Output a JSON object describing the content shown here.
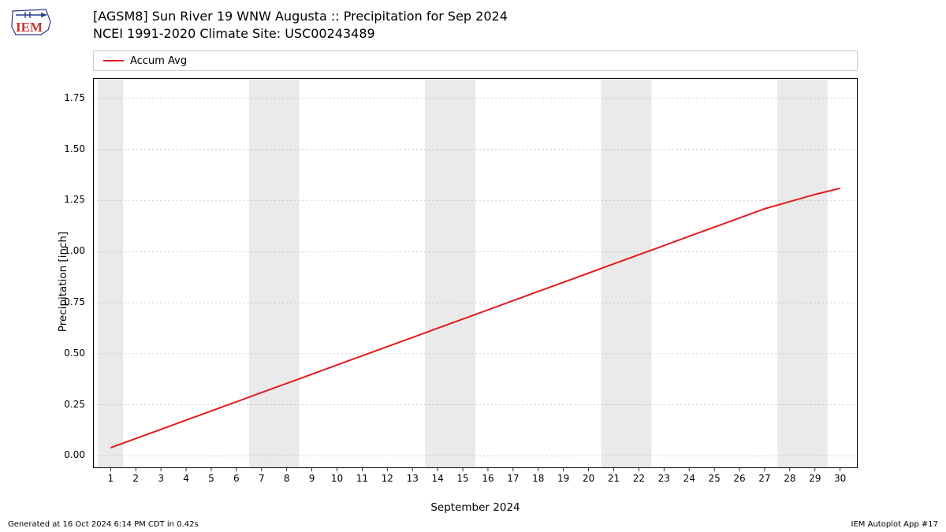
{
  "logo": {
    "text": "IEM",
    "text_color": "#c8342f",
    "outline_color": "#2a3b8f"
  },
  "title": {
    "line1": "[AGSM8] Sun River 19 WNW Augusta :: Precipitation for Sep 2024",
    "line2": "NCEI 1991-2020 Climate Site: USC00243489",
    "fontsize": 16
  },
  "legend": {
    "items": [
      {
        "label": "Accum Avg",
        "color": "#e41a1c"
      }
    ],
    "border_color": "#cccccc"
  },
  "chart": {
    "type": "line",
    "background_color": "#ffffff",
    "weekend_band_color": "#eaeaea",
    "border_color": "#000000",
    "grid_color": "#b0b0b0",
    "grid_linewidth": 0.6,
    "line_width": 2,
    "xlim": [
      0.3,
      30.7
    ],
    "ylim": [
      -0.06,
      1.85
    ],
    "xticks": [
      1,
      2,
      3,
      4,
      5,
      6,
      7,
      8,
      9,
      10,
      11,
      12,
      13,
      14,
      15,
      16,
      17,
      18,
      19,
      20,
      21,
      22,
      23,
      24,
      25,
      26,
      27,
      28,
      29,
      30
    ],
    "yticks": [
      0.0,
      0.25,
      0.5,
      0.75,
      1.0,
      1.25,
      1.5,
      1.75
    ],
    "ytick_labels": [
      "0.00",
      "0.25",
      "0.50",
      "0.75",
      "1.00",
      "1.25",
      "1.50",
      "1.75"
    ],
    "weekend_bands": [
      [
        0.5,
        1.5
      ],
      [
        6.5,
        8.5
      ],
      [
        13.5,
        15.5
      ],
      [
        20.5,
        22.5
      ],
      [
        27.5,
        29.5
      ]
    ],
    "series": [
      {
        "name": "Accum Avg",
        "color": "#e41a1c",
        "x": [
          1,
          2,
          3,
          4,
          5,
          6,
          7,
          8,
          9,
          10,
          11,
          12,
          13,
          14,
          15,
          16,
          17,
          18,
          19,
          20,
          21,
          22,
          23,
          24,
          25,
          26,
          27,
          28,
          29,
          30
        ],
        "y": [
          0.04,
          0.085,
          0.13,
          0.175,
          0.22,
          0.265,
          0.31,
          0.355,
          0.4,
          0.445,
          0.49,
          0.535,
          0.58,
          0.625,
          0.67,
          0.715,
          0.76,
          0.805,
          0.85,
          0.895,
          0.94,
          0.985,
          1.03,
          1.075,
          1.12,
          1.165,
          1.21,
          1.245,
          1.28,
          1.31
        ]
      }
    ],
    "ylabel": "Precipitation [inch]",
    "xlabel": "September 2024",
    "axis_fontsize": 13.5,
    "tick_fontsize": 12
  },
  "footer": {
    "left": "Generated at 16 Oct 2024 6:14 PM CDT in 0.42s",
    "right": "IEM Autoplot App #17",
    "fontsize": 10
  }
}
